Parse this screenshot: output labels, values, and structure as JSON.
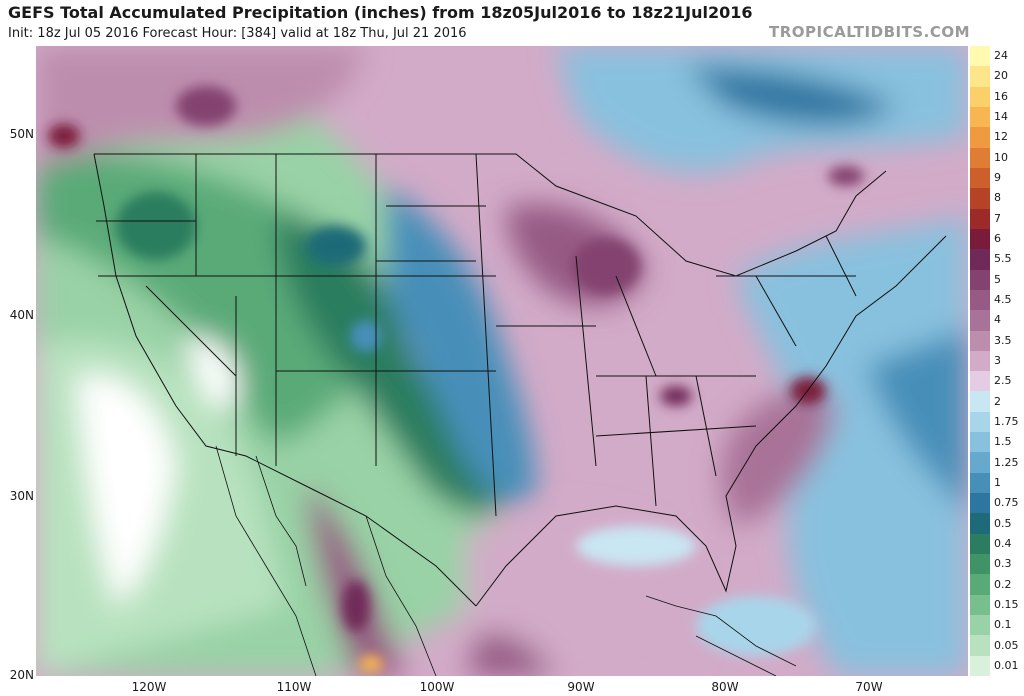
{
  "header": {
    "title": "GEFS Total Accumulated Precipitation (inches) from 18z05Jul2016 to 18z21Jul2016",
    "subtitle": "Init: 18z Jul 05 2016   Forecast Hour: [384]   valid at 18z Thu, Jul 21 2016",
    "credit": "TROPICALTIDBITS.COM"
  },
  "map": {
    "lat_labels": [
      "50N",
      "40N",
      "30N",
      "20N"
    ],
    "lon_labels": [
      "120W",
      "110W",
      "100W",
      "90W",
      "80W",
      "70W"
    ]
  },
  "colorbar": {
    "levels": [
      {
        "label": "24",
        "color": "#fffab0"
      },
      {
        "label": "20",
        "color": "#fde68a"
      },
      {
        "label": "16",
        "color": "#fbd06a"
      },
      {
        "label": "14",
        "color": "#f7b652"
      },
      {
        "label": "12",
        "color": "#ef9a40"
      },
      {
        "label": "10",
        "color": "#e07d35"
      },
      {
        "label": "9",
        "color": "#cc5f2c"
      },
      {
        "label": "8",
        "color": "#b74326"
      },
      {
        "label": "7",
        "color": "#9c2a29"
      },
      {
        "label": "6",
        "color": "#7a1b3a"
      },
      {
        "label": "5.5",
        "color": "#6f2a59"
      },
      {
        "label": "5",
        "color": "#83426f"
      },
      {
        "label": "4.5",
        "color": "#965a84"
      },
      {
        "label": "4",
        "color": "#a97298"
      },
      {
        "label": "3.5",
        "color": "#bd8dae"
      },
      {
        "label": "3",
        "color": "#d2abc8"
      },
      {
        "label": "2.5",
        "color": "#e4cde2"
      },
      {
        "label": "2",
        "color": "#c9e6f3"
      },
      {
        "label": "1.75",
        "color": "#a9d5ea"
      },
      {
        "label": "1.5",
        "color": "#88c1de"
      },
      {
        "label": "1.25",
        "color": "#66a9cd"
      },
      {
        "label": "1",
        "color": "#468fb9"
      },
      {
        "label": "0.75",
        "color": "#2e76a2"
      },
      {
        "label": "0.5",
        "color": "#1f6a78"
      },
      {
        "label": "0.4",
        "color": "#2c7d5f"
      },
      {
        "label": "0.3",
        "color": "#3f9366"
      },
      {
        "label": "0.2",
        "color": "#5aaa78"
      },
      {
        "label": "0.15",
        "color": "#78bf8e"
      },
      {
        "label": "0.1",
        "color": "#99d2a6"
      },
      {
        "label": "0.05",
        "color": "#b8e2bf"
      },
      {
        "label": "0.01",
        "color": "#d9f0da"
      }
    ]
  }
}
